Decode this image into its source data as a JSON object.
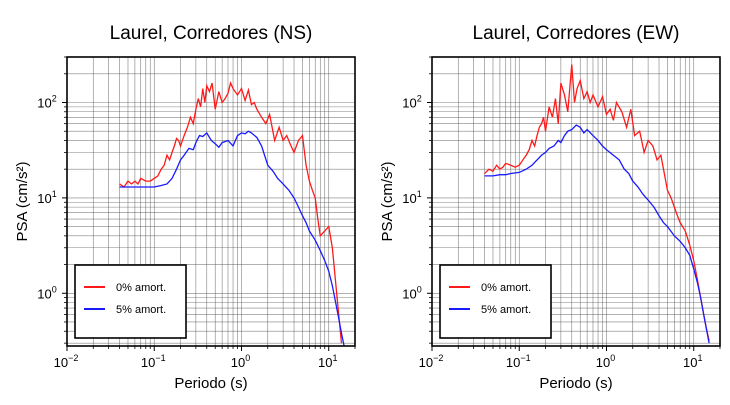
{
  "colors": {
    "red": "#ff1a1a",
    "blue": "#1a1aff",
    "grid": "#555555",
    "frame": "#000000"
  },
  "chart_data": [
    {
      "type": "line",
      "title": "Laurel, Corredores (NS)",
      "xlabel": "Periodo (s)",
      "ylabel": "PSA (cm/s²)",
      "x_scale": "log",
      "y_scale": "log",
      "xlim": [
        0.01,
        20
      ],
      "ylim": [
        0.28,
        300
      ],
      "x_ticks": [
        {
          "value": 0.01,
          "base": "10",
          "exp": "−2"
        },
        {
          "value": 0.1,
          "base": "10",
          "exp": "−1"
        },
        {
          "value": 1,
          "base": "10",
          "exp": "0"
        },
        {
          "value": 10,
          "base": "10",
          "exp": "1"
        }
      ],
      "y_ticks": [
        {
          "value": 1,
          "base": "10",
          "exp": "0"
        },
        {
          "value": 10,
          "base": "10",
          "exp": "1"
        },
        {
          "value": 100,
          "base": "10",
          "exp": "2"
        }
      ],
      "grid": true,
      "legend_position": "bottom-left",
      "series": [
        {
          "name": "0% amort.",
          "color": "#ff1a1a",
          "x": [
            0.04,
            0.045,
            0.05,
            0.055,
            0.06,
            0.065,
            0.07,
            0.08,
            0.09,
            0.1,
            0.11,
            0.12,
            0.13,
            0.14,
            0.15,
            0.16,
            0.17,
            0.18,
            0.19,
            0.2,
            0.22,
            0.24,
            0.26,
            0.28,
            0.3,
            0.32,
            0.34,
            0.36,
            0.38,
            0.4,
            0.43,
            0.46,
            0.5,
            0.55,
            0.6,
            0.65,
            0.7,
            0.75,
            0.8,
            0.9,
            1.0,
            1.1,
            1.2,
            1.3,
            1.4,
            1.5,
            1.7,
            1.9,
            2.1,
            2.4,
            2.7,
            3.0,
            3.3,
            3.7,
            4.0,
            4.5,
            5.0,
            5.5,
            6.0,
            6.5,
            7.0,
            7.5,
            8.0,
            9.0,
            10.0,
            11.0,
            12.0,
            13.0,
            14.0
          ],
          "y": [
            14,
            13,
            15,
            14,
            15,
            14,
            16,
            15,
            15,
            16,
            17,
            20,
            22,
            28,
            25,
            30,
            35,
            42,
            40,
            35,
            45,
            55,
            70,
            60,
            85,
            110,
            90,
            140,
            100,
            150,
            130,
            160,
            85,
            130,
            100,
            110,
            125,
            160,
            140,
            120,
            140,
            105,
            135,
            95,
            100,
            85,
            70,
            60,
            75,
            40,
            55,
            40,
            45,
            35,
            30,
            40,
            45,
            22,
            15,
            12,
            10,
            6,
            4,
            4.5,
            5,
            3,
            1.3,
            0.6,
            0.3
          ]
        },
        {
          "name": "5% amort.",
          "color": "#1a1aff",
          "x": [
            0.04,
            0.05,
            0.06,
            0.07,
            0.08,
            0.1,
            0.12,
            0.14,
            0.16,
            0.18,
            0.2,
            0.22,
            0.25,
            0.28,
            0.3,
            0.33,
            0.36,
            0.4,
            0.45,
            0.5,
            0.55,
            0.6,
            0.7,
            0.8,
            0.9,
            1.0,
            1.1,
            1.2,
            1.3,
            1.5,
            1.7,
            2.0,
            2.3,
            2.6,
            3.0,
            3.5,
            4.0,
            4.5,
            5.0,
            5.5,
            6.0,
            7.0,
            8.0,
            9.0,
            10.0,
            11.0,
            12.0,
            13.0,
            14.0,
            15.0
          ],
          "y": [
            13,
            13,
            13,
            13,
            13,
            13,
            13.5,
            14,
            16,
            20,
            25,
            28,
            33,
            32,
            38,
            45,
            44,
            48,
            40,
            37,
            34,
            38,
            40,
            35,
            45,
            48,
            47,
            50,
            48,
            43,
            35,
            22,
            19,
            16,
            14,
            12,
            10,
            8,
            6.5,
            5.5,
            4.5,
            3.6,
            2.8,
            2.2,
            1.7,
            1.2,
            0.8,
            0.55,
            0.38,
            0.28
          ]
        }
      ]
    },
    {
      "type": "line",
      "title": "Laurel, Corredores (EW)",
      "xlabel": "Periodo (s)",
      "ylabel": "PSA (cm/s²)",
      "x_scale": "log",
      "y_scale": "log",
      "xlim": [
        0.01,
        20
      ],
      "ylim": [
        0.28,
        300
      ],
      "x_ticks": [
        {
          "value": 0.01,
          "base": "10",
          "exp": "−2"
        },
        {
          "value": 0.1,
          "base": "10",
          "exp": "−1"
        },
        {
          "value": 1,
          "base": "10",
          "exp": "0"
        },
        {
          "value": 10,
          "base": "10",
          "exp": "1"
        }
      ],
      "y_ticks": [
        {
          "value": 1,
          "base": "10",
          "exp": "0"
        },
        {
          "value": 10,
          "base": "10",
          "exp": "1"
        },
        {
          "value": 100,
          "base": "10",
          "exp": "2"
        }
      ],
      "grid": true,
      "legend_position": "bottom-left",
      "series": [
        {
          "name": "0% amort.",
          "color": "#ff1a1a",
          "x": [
            0.04,
            0.045,
            0.05,
            0.055,
            0.06,
            0.065,
            0.07,
            0.08,
            0.09,
            0.1,
            0.11,
            0.12,
            0.13,
            0.14,
            0.15,
            0.16,
            0.17,
            0.18,
            0.19,
            0.2,
            0.22,
            0.24,
            0.26,
            0.28,
            0.3,
            0.33,
            0.36,
            0.4,
            0.43,
            0.46,
            0.5,
            0.55,
            0.6,
            0.65,
            0.7,
            0.8,
            0.9,
            1.0,
            1.1,
            1.2,
            1.3,
            1.5,
            1.7,
            1.9,
            2.1,
            2.4,
            2.7,
            3.0,
            3.4,
            3.8,
            4.2,
            4.6,
            5.0,
            5.5,
            6.0,
            6.5,
            7.0,
            8.0,
            9.0,
            10.0,
            11.0,
            12.0,
            13.0,
            14.0,
            15.0
          ],
          "y": [
            18,
            20,
            19,
            22,
            20,
            21,
            23,
            22,
            21,
            22,
            25,
            28,
            32,
            40,
            35,
            45,
            55,
            60,
            70,
            50,
            90,
            70,
            110,
            60,
            160,
            120,
            80,
            250,
            100,
            140,
            170,
            110,
            130,
            100,
            120,
            90,
            115,
            75,
            85,
            65,
            100,
            80,
            55,
            85,
            45,
            50,
            30,
            40,
            35,
            25,
            28,
            18,
            12,
            10,
            8,
            6.5,
            5.5,
            4.5,
            3.2,
            2.2,
            1.4,
            0.9,
            0.6,
            0.42,
            0.32
          ]
        },
        {
          "name": "5% amort.",
          "color": "#1a1aff",
          "x": [
            0.04,
            0.05,
            0.06,
            0.07,
            0.08,
            0.1,
            0.12,
            0.14,
            0.16,
            0.18,
            0.2,
            0.22,
            0.25,
            0.28,
            0.3,
            0.33,
            0.36,
            0.4,
            0.45,
            0.5,
            0.55,
            0.6,
            0.7,
            0.8,
            0.9,
            1.0,
            1.2,
            1.4,
            1.6,
            1.8,
            2.0,
            2.3,
            2.6,
            3.0,
            3.5,
            4.0,
            4.5,
            5.0,
            6.0,
            7.0,
            8.0,
            9.0,
            10.0,
            11.0,
            12.0,
            13.0,
            14.0,
            15.0
          ],
          "y": [
            17,
            17,
            17.5,
            17.5,
            18,
            18.5,
            20,
            22,
            25,
            28,
            30,
            33,
            35,
            40,
            38,
            45,
            50,
            52,
            58,
            55,
            48,
            52,
            45,
            40,
            35,
            32,
            28,
            25,
            20,
            18,
            15,
            13,
            11,
            9.5,
            8,
            6.5,
            5.5,
            5,
            4,
            3.5,
            3,
            2.5,
            1.8,
            1.3,
            0.9,
            0.6,
            0.42,
            0.3
          ]
        }
      ]
    }
  ]
}
